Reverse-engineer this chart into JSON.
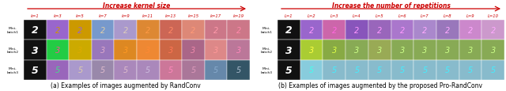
{
  "fig_width": 6.4,
  "fig_height": 1.16,
  "dpi": 100,
  "bg_color": "#ffffff",
  "left_title": "Increase kernel size",
  "right_title": "Increase the number of repetitions",
  "title_color": "#cc0000",
  "left_col_labels": [
    "k=1",
    "k=3",
    "k=5",
    "k=7",
    "k=9",
    "k=11",
    "k=13",
    "k=15",
    "k=17",
    "k=19"
  ],
  "right_col_labels": [
    "L=1",
    "L=2",
    "L=3",
    "L=4",
    "L=5",
    "L=6",
    "L=7",
    "L=8",
    "L=9",
    "L=10"
  ],
  "col_label_color": "#cc0000",
  "row_labels": [
    "Mini-\nbatch1",
    "Mini-\nbatch2",
    "Mini-\nbatch3"
  ],
  "digits": [
    "2",
    "3",
    "5"
  ],
  "caption_left": "(a) Examples of images augmented by RandConv",
  "caption_right": "(b) Examples of images augmented by the proposed Pro-RandConv",
  "left_bg_colors": [
    [
      "#111111",
      "#9966cc",
      "#cc9900",
      "#7799cc",
      "#aa99cc",
      "#dd8833",
      "#cc6655",
      "#dd8877",
      "#cc7788",
      "#cc7788"
    ],
    [
      "#111111",
      "#22cc44",
      "#ccaa00",
      "#9977bb",
      "#dd8822",
      "#ee8833",
      "#cc6644",
      "#aa6688",
      "#dd8888",
      "#bb7799"
    ],
    [
      "#111111",
      "#9966bb",
      "#aa99cc",
      "#9988aa",
      "#aa88bb",
      "#aa88bb",
      "#cc7799",
      "#aa7799",
      "#6688aa",
      "#335566"
    ]
  ],
  "right_bg_colors": [
    [
      "#111111",
      "#9966cc",
      "#cc66aa",
      "#8855bb",
      "#9966bb",
      "#aa77cc",
      "#aa88cc",
      "#9977bb",
      "#cc88cc",
      "#cc99cc"
    ],
    [
      "#111111",
      "#aacc33",
      "#88aa44",
      "#88aa55",
      "#99aa55",
      "#88aa55",
      "#88aa55",
      "#88aa55",
      "#88aa55",
      "#88aa55"
    ],
    [
      "#111111",
      "#88ccdd",
      "#88bbcc",
      "#88bbcc",
      "#88bbcc",
      "#88bbcc",
      "#88bbcc",
      "#88bbcc",
      "#88bbcc",
      "#88bbcc"
    ]
  ],
  "left_digit_colors": [
    [
      "#ffffff",
      "#cc9900",
      "#9966cc",
      "#ddccaa",
      "#ddccbb",
      "#ff9944",
      "#ff8866",
      "#ff9977",
      "#ff99aa",
      "#ff88aa"
    ],
    [
      "#ffffff",
      "#ff4499",
      "#ddaa00",
      "#ddaacc",
      "#ff9922",
      "#ff8833",
      "#ff7755",
      "#ee88aa",
      "#ff9999",
      "#ff88bb"
    ],
    [
      "#ffffff",
      "#44dd88",
      "#ddccaa",
      "#ddbbcc",
      "#ddbbcc",
      "#ccbbdd",
      "#ff88bb",
      "#dd99bb",
      "#88aacc",
      "#aabbcc"
    ]
  ],
  "right_digit_colors": [
    [
      "#ffffff",
      "#ff99ff",
      "#ff66dd",
      "#ff99ff",
      "#ff99ff",
      "#ff99ff",
      "#ffaaff",
      "#ffaaff",
      "#ffaaff",
      "#ffaaff"
    ],
    [
      "#ffffff",
      "#ffff44",
      "#ddff44",
      "#ccff88",
      "#ccff88",
      "#ccff88",
      "#ccff88",
      "#ccff88",
      "#ccff88",
      "#ccff88"
    ],
    [
      "#ffffff",
      "#44ffee",
      "#44eeff",
      "#44eeff",
      "#44eeff",
      "#44eeff",
      "#44eeff",
      "#44eeff",
      "#44eeff",
      "#44eeff"
    ]
  ]
}
